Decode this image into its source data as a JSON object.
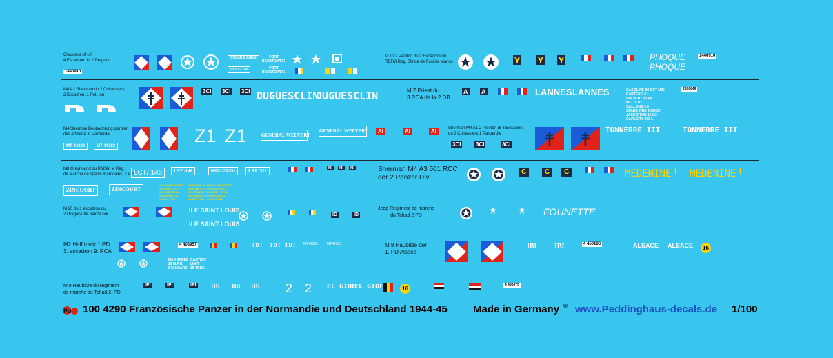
{
  "colors": {
    "background": "#38c5ee",
    "french_blue": "#1a5bd8",
    "french_red": "#e2231a",
    "link": "#1a52c0",
    "yellow": "#ffd400"
  },
  "row1": {
    "caption": "Chasseur M 10\n4 Escadron du 2 Dragons",
    "plate": "1440910",
    "marking_box": "SUSAN 2 AHEM",
    "port1": "PORT\nBARSTOWLT2",
    "port2": "PORT\nBARSTOWLT2",
    "lst": "LST / 2 0 4",
    "caption2": "M 10 2 Peloton du 2 Escadron du\nRBFM Reg. Blinde de Fusilier Marins",
    "phoque1": "PHOQUE",
    "phoque2": "PHOQUE",
    "plate2": "1440910"
  },
  "row2": {
    "caption": "M4 A2 Sherman du 2 Cuirassiers,\n2 Escadron, 1 Pel . on",
    "duguesclin1": "DUGUESCLIN",
    "duguesclin2": "DUGUESCLIN",
    "unit_marks": [
      "3CI",
      "3CI",
      "3CI"
    ],
    "caption2": "M 7 Priest du\n3 RCA de la 2 DB",
    "lannes1": "LANNES",
    "lannes2": "LANNES",
    "plate": "2308649",
    "stencil_lines": "GASOLINE 80 OCT MIN\nCARTER 7.5 L\nSOLVENT 50 PA\nFILL 1 1/2\nGALLONS 4.5\nSPARE TIRE 9.00X20\nJACK 5 TON 15 0.5\nCAPACITY 300 L"
  },
  "row3": {
    "caption": "M4 Sherman Beobachtungspanzer\ndes Artillerie    3. Panzerdiv",
    "plates": [
      "MT 44383",
      "MT 44383"
    ],
    "z1": "Z1",
    "z1b": "Z1",
    "general1": "GENERAL WELVERT",
    "general2": "GENERAL WELVERT",
    "red_marks": [
      "AI",
      "AI",
      "AI"
    ],
    "caption2": "Sherman M4 A1 2 Peloton di 4 Escadion\ndu 2 Cuirassiers 1 Panzerdiv",
    "unit_marks": [
      "3CI",
      "3CI",
      "3CI"
    ],
    "tonnerre1": "TONNERRE III",
    "tonnerre2": "TONNERRE III"
  },
  "row4": {
    "caption": "M8 Greyhound du RMSM le Reg.\nde Marche de spahis marocains, 2 PD",
    "lct": "LCT/ 146",
    "lst1": "LST /146",
    "lst2": "8000/LST/311",
    "lst3": "LST /311",
    "zincourt1": "ZINCOURT",
    "zincourt2": "ZINCOURT",
    "unit_marks": [
      "RI",
      "RI",
      "RI"
    ],
    "caption2": "Sherman M4 A3 501 RCC\nder 2 Panzer Div",
    "c_marks": [
      "C",
      "C",
      "C"
    ],
    "medenine1": "MEDENINE",
    "medenine2": "MEDENINE",
    "stencil_lines": "GASOLINE 80 OCT\nCARTER 7.5 L\nSOLVENT 50 PA\nPRESSION 1.8\nJACK 5 TON"
  },
  "row5": {
    "caption": "M 20 du 1 escadron du\n2 Dragons Ile Saint-Loui",
    "ile1": "ILE SAINT LOUIS",
    "ile2": "ILE SAINT LOUIS",
    "id_marks": [
      "ID",
      "ID"
    ],
    "caption2": "Jeep Regiment  de marche\ndu Tchad 2 PD",
    "fouinette": "FOUNETTE"
  },
  "row6": {
    "caption": "M2 Half track 1 PD\n3. escadron 9. RCA",
    "plate": "4 408957",
    "regs": [
      "MT42363",
      "MT42363"
    ],
    "ibi": [
      "IBI",
      "IBI"
    ],
    "stencil": "MAX SPEED\n25 M.P.H.\nSTANDARD",
    "stencil2": "CAUTION\nLIMIT\n18 TONS",
    "caption2": "M 8 Haubitze der\n1. PD Alsace",
    "plate2": "4 450186",
    "alsace1": "ALSACE",
    "alsace2": "ALSACE",
    "disc": "16"
  },
  "row7": {
    "caption": "M 8 Haubitze du regiment\nde marche du Tchad 2. PD",
    "ipi": [
      "IPI",
      "IPI",
      "IPI"
    ],
    "ibi": [
      "IBI",
      "IBI",
      "IBI"
    ],
    "two1": "2",
    "two2": "2",
    "elgiof1": "EL GIOF",
    "elgiof2": "EL GIOF",
    "disc": "16",
    "plate": "4 450675"
  },
  "footer": {
    "code": "100 4290",
    "title": "Französische Panzer in der Normandie und Deutschland 1944-45",
    "made": "Made in Germany",
    "reg": "®",
    "url": "www.Peddinghaus-decals.de",
    "scale": "1/100"
  }
}
